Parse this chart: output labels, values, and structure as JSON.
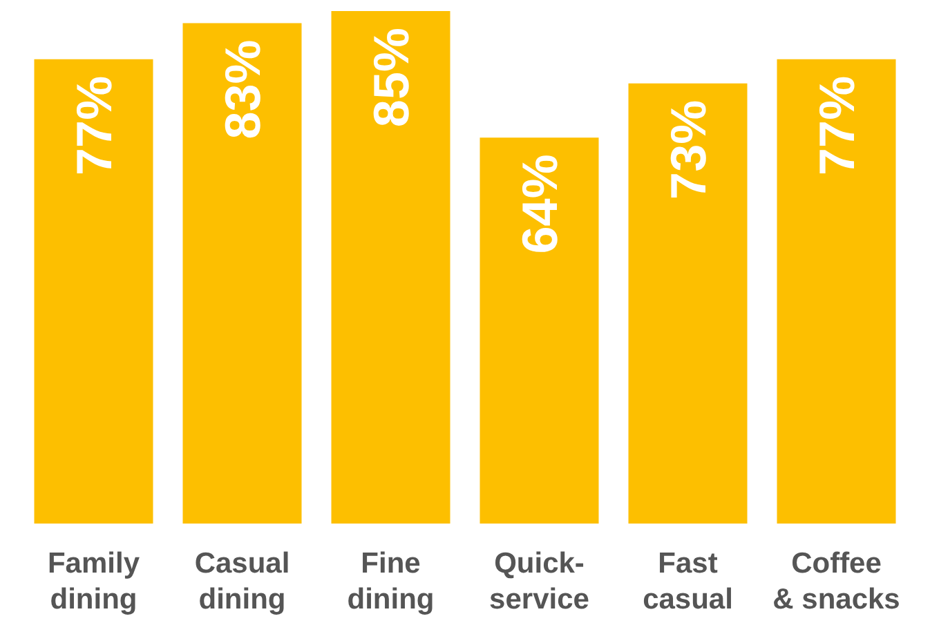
{
  "chart_data": {
    "type": "bar",
    "categories": [
      "Family dining",
      "Casual dining",
      "Fine dining",
      "Quick-service",
      "Fast casual",
      "Coffee & snacks"
    ],
    "values": [
      77,
      83,
      85,
      64,
      73,
      77
    ],
    "value_labels": [
      "77%",
      "83%",
      "85%",
      "64%",
      "73%",
      "77%"
    ],
    "color": "#fdbf00"
  }
}
